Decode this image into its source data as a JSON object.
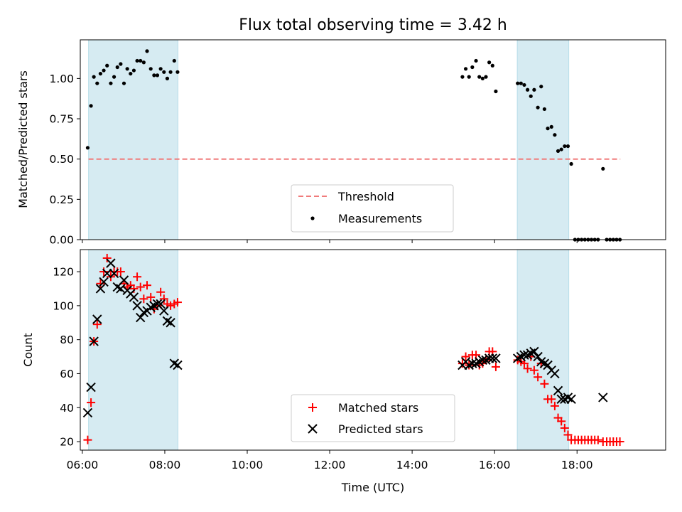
{
  "chart_data": [
    {
      "type": "scatter",
      "title": "Flux total observing time = 3.42 h",
      "xlabel": "",
      "ylabel": "Matched/Predicted stars",
      "ylim": [
        0,
        1.24
      ],
      "yticks": [
        "0.00",
        "0.25",
        "0.50",
        "0.75",
        "1.00"
      ],
      "ytick_values": [
        0,
        0.25,
        0.5,
        0.75,
        1.0
      ],
      "xlim": [
        5.95,
        20.15
      ],
      "legend_position": "lower-center",
      "shaded_intervals": [
        [
          6.15,
          8.32
        ],
        [
          16.55,
          17.8
        ]
      ],
      "threshold": {
        "name": "Threshold",
        "y": 0.5,
        "x_range": [
          6.15,
          19.05
        ],
        "color": "#f07b7b"
      },
      "series": [
        {
          "name": "Measurements",
          "color": "#000000",
          "x": [
            6.13,
            6.21,
            6.28,
            6.36,
            6.44,
            6.52,
            6.6,
            6.69,
            6.77,
            6.85,
            6.93,
            7.01,
            7.09,
            7.17,
            7.25,
            7.33,
            7.41,
            7.49,
            7.57,
            7.66,
            7.74,
            7.82,
            7.9,
            7.98,
            8.06,
            8.14,
            8.23,
            8.31,
            15.22,
            15.3,
            15.38,
            15.46,
            15.55,
            15.63,
            15.71,
            15.79,
            15.87,
            15.95,
            16.03,
            16.56,
            16.64,
            16.72,
            16.8,
            16.88,
            16.96,
            17.05,
            17.13,
            17.21,
            17.29,
            17.38,
            17.46,
            17.54,
            17.62,
            17.7,
            17.78,
            17.86,
            17.95,
            18.03,
            18.11,
            18.19,
            18.27,
            18.35,
            18.43,
            18.51,
            18.63,
            18.72,
            18.8,
            18.88,
            18.96,
            19.04
          ],
          "y": [
            0.57,
            0.83,
            1.01,
            0.97,
            1.03,
            1.05,
            1.08,
            0.97,
            1.01,
            1.07,
            1.09,
            0.97,
            1.06,
            1.03,
            1.05,
            1.11,
            1.11,
            1.1,
            1.17,
            1.06,
            1.02,
            1.02,
            1.06,
            1.04,
            1.0,
            1.04,
            1.11,
            1.04,
            1.01,
            1.06,
            1.01,
            1.07,
            1.11,
            1.01,
            1.0,
            1.01,
            1.1,
            1.08,
            0.92,
            0.97,
            0.97,
            0.96,
            0.93,
            0.89,
            0.93,
            0.82,
            0.95,
            0.81,
            0.69,
            0.7,
            0.65,
            0.55,
            0.56,
            0.58,
            0.58,
            0.47,
            0.0,
            0.0,
            0.0,
            0.0,
            0.0,
            0.0,
            0.0,
            0.0,
            0.44,
            0.0,
            0.0,
            0.0,
            0.0,
            0.0
          ]
        }
      ]
    },
    {
      "type": "scatter",
      "title": "",
      "xlabel": "Time (UTC)",
      "ylabel": "Count",
      "ylim": [
        15,
        133
      ],
      "yticks": [
        "20",
        "40",
        "60",
        "80",
        "100",
        "120"
      ],
      "ytick_values": [
        20,
        40,
        60,
        80,
        100,
        120
      ],
      "xlim": [
        5.95,
        20.15
      ],
      "xticks": [
        "06:00",
        "08:00",
        "10:00",
        "12:00",
        "14:00",
        "16:00",
        "18:00"
      ],
      "xtick_values": [
        6,
        8,
        10,
        12,
        14,
        16,
        18
      ],
      "legend_position": "lower-center",
      "shaded_intervals": [
        [
          6.15,
          8.32
        ],
        [
          16.55,
          17.8
        ]
      ],
      "series": [
        {
          "name": "Matched stars",
          "marker": "plus",
          "color": "#ff0000",
          "x": [
            6.13,
            6.21,
            6.28,
            6.36,
            6.44,
            6.52,
            6.6,
            6.69,
            6.77,
            6.85,
            6.93,
            7.01,
            7.09,
            7.17,
            7.25,
            7.33,
            7.41,
            7.49,
            7.57,
            7.66,
            7.74,
            7.82,
            7.9,
            7.98,
            8.06,
            8.14,
            8.23,
            8.31,
            15.22,
            15.3,
            15.38,
            15.46,
            15.55,
            15.63,
            15.71,
            15.79,
            15.87,
            15.95,
            16.03,
            16.56,
            16.64,
            16.72,
            16.8,
            16.88,
            16.96,
            17.05,
            17.13,
            17.21,
            17.29,
            17.38,
            17.46,
            17.54,
            17.62,
            17.7,
            17.78,
            17.86,
            17.95,
            18.03,
            18.11,
            18.19,
            18.27,
            18.35,
            18.43,
            18.51,
            18.63,
            18.72,
            18.8,
            18.88,
            18.96,
            19.04
          ],
          "y": [
            21,
            43,
            79,
            89,
            113,
            120,
            128,
            117,
            120,
            120,
            120,
            113,
            111,
            112,
            110,
            117,
            111,
            104,
            112,
            105,
            98,
            100,
            108,
            104,
            101,
            100,
            101,
            102,
            66,
            70,
            65,
            71,
            71,
            65,
            66,
            68,
            73,
            73,
            64,
            68,
            67,
            66,
            63,
            70,
            62,
            58,
            66,
            54,
            45,
            45,
            41,
            34,
            32,
            28,
            24,
            21,
            21,
            21,
            21,
            21,
            21,
            21,
            21,
            21,
            20,
            20,
            20,
            20,
            20,
            20
          ]
        },
        {
          "name": "Predicted stars",
          "marker": "x",
          "color": "#000000",
          "x": [
            6.13,
            6.21,
            6.28,
            6.36,
            6.44,
            6.52,
            6.6,
            6.69,
            6.77,
            6.85,
            6.93,
            7.01,
            7.09,
            7.17,
            7.25,
            7.33,
            7.41,
            7.49,
            7.57,
            7.66,
            7.74,
            7.82,
            7.9,
            7.98,
            8.06,
            8.14,
            8.23,
            8.31,
            15.22,
            15.3,
            15.38,
            15.46,
            15.55,
            15.63,
            15.71,
            15.79,
            15.87,
            15.95,
            16.03,
            16.56,
            16.64,
            16.72,
            16.8,
            16.88,
            16.96,
            17.05,
            17.13,
            17.21,
            17.29,
            17.38,
            17.46,
            17.54,
            17.62,
            17.7,
            17.78,
            17.86,
            18.63
          ],
          "y": [
            37,
            52,
            79,
            92,
            110,
            114,
            119,
            125,
            119,
            111,
            110,
            115,
            109,
            107,
            105,
            100,
            93,
            96,
            97,
            99,
            100,
            101,
            101,
            97,
            91,
            90,
            66,
            65,
            65,
            67,
            65,
            66,
            66,
            67,
            68,
            68,
            69,
            69,
            69,
            69,
            70,
            71,
            71,
            72,
            73,
            70,
            67,
            66,
            65,
            62,
            60,
            50,
            45,
            45,
            46,
            45,
            46
          ]
        }
      ]
    }
  ]
}
